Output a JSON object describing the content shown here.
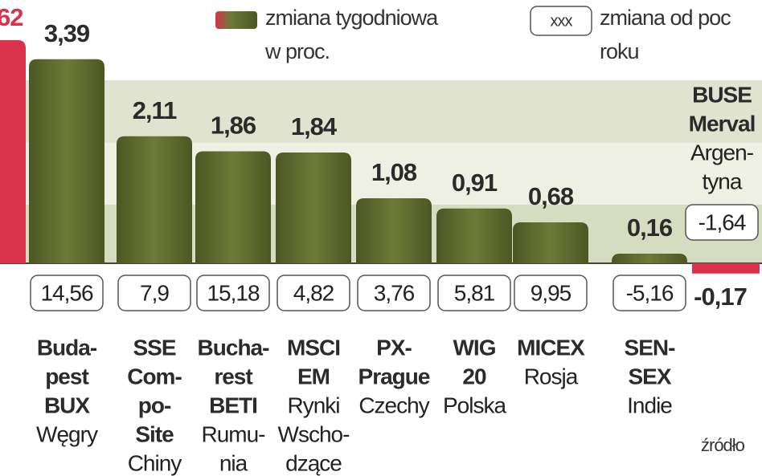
{
  "chart_data": {
    "type": "bar",
    "legend": {
      "weekly": [
        "zmiana tygodniowa",
        "w proc."
      ],
      "ytd_sample": "xxx",
      "ytd": [
        "zmiana od poc",
        "roku"
      ]
    },
    "annotations": [
      "62"
    ],
    "source": "źródło",
    "categories": [
      {
        "bold": [
          "Buda-",
          "pest",
          "BUX"
        ],
        "normal": [
          "Węgry"
        ]
      },
      {
        "bold": [
          "SSE",
          "Com-",
          "po-",
          "Site"
        ],
        "normal": [
          "Chiny"
        ]
      },
      {
        "bold": [
          "Bucha-",
          "rest",
          "BETI"
        ],
        "normal": [
          "Rumu-",
          "nia"
        ]
      },
      {
        "bold": [
          "MSCI",
          "EM"
        ],
        "normal": [
          "Rynki",
          "Wscho-",
          "dzące"
        ]
      },
      {
        "bold": [
          "PX-",
          "Prague"
        ],
        "normal": [
          "Czechy"
        ]
      },
      {
        "bold": [
          "WIG",
          "20"
        ],
        "normal": [
          "Polska"
        ]
      },
      {
        "bold": [
          "MICEX"
        ],
        "normal": [
          "Rosja"
        ]
      },
      {
        "bold": [
          "SEN-",
          "SEX"
        ],
        "normal": [
          "Indie"
        ]
      },
      {
        "bold": [
          "BUSE",
          "Merval"
        ],
        "normal": [
          "Argen-",
          "tyna"
        ]
      }
    ],
    "values": [
      3.39,
      2.11,
      1.86,
      1.84,
      1.08,
      0.91,
      0.68,
      0.16,
      -0.17
    ],
    "value_labels": [
      "3,39",
      "2,11",
      "1,86",
      "1,84",
      "1,08",
      "0,91",
      "0,68",
      "0,16",
      "-0,17"
    ],
    "ytd": [
      14.56,
      7.9,
      15.18,
      4.82,
      3.76,
      5.81,
      9.95,
      -5.16,
      -1.64
    ],
    "ytd_labels": [
      "14,56",
      "7,9",
      "15,18",
      "4,82",
      "3,76",
      "5,81",
      "9,95",
      "-5,16",
      "-1,64"
    ],
    "colors": {
      "positive": "#5f6b2e",
      "negative": "#d9324a"
    }
  }
}
